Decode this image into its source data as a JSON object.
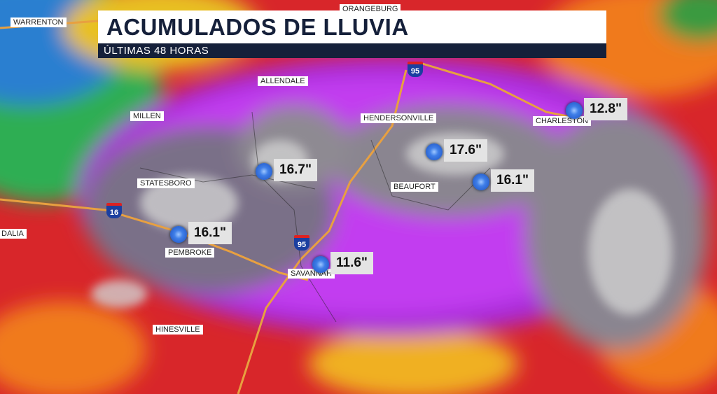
{
  "header": {
    "title": "ACUMULADOS DE LLUVIA",
    "subtitle": "ÚLTIMAS 48 HORAS"
  },
  "cities": [
    {
      "label": "WARRENTON"
    },
    {
      "label": "ORANGEBURG"
    },
    {
      "label": "ALLENDALE"
    },
    {
      "label": "MILLEN"
    },
    {
      "label": "HENDERSONVILLE"
    },
    {
      "label": "CHARLESTON"
    },
    {
      "label": "STATESBORO"
    },
    {
      "label": "BEAUFORT"
    },
    {
      "label": "PEMBROKE"
    },
    {
      "label": "SAVANNAH"
    },
    {
      "label": "HINESVILLE"
    },
    {
      "label": "DALIA"
    }
  ],
  "markers": [
    {
      "amount": "16.7\""
    },
    {
      "amount": "17.6\""
    },
    {
      "amount": "16.1\""
    },
    {
      "amount": "12.8\""
    },
    {
      "amount": "16.1\""
    },
    {
      "amount": "11.6\""
    }
  ],
  "highways": [
    {
      "label": "95"
    },
    {
      "label": "95"
    },
    {
      "label": "16"
    }
  ]
}
